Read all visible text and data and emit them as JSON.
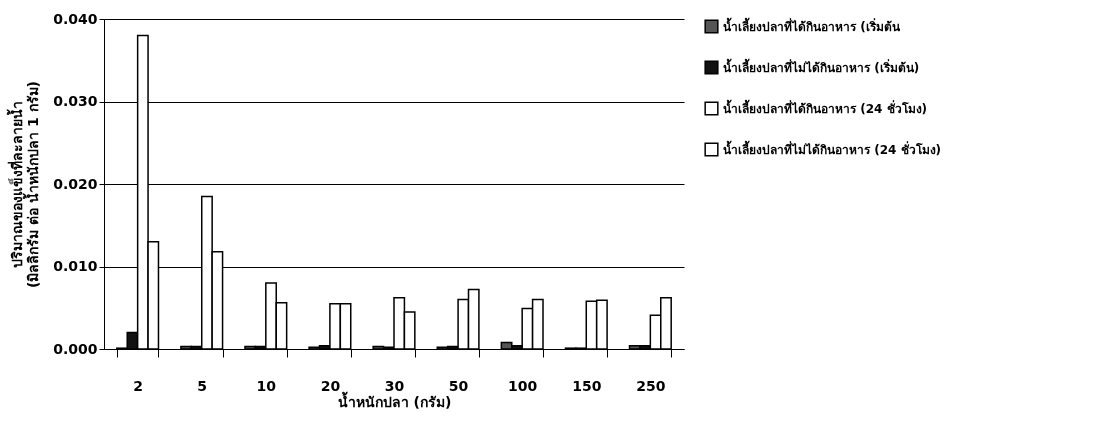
{
  "chart_data": {
    "type": "bar",
    "ylabel": "ปริมาณของแข็งที่ละลายน้ำ\n(มิลลิกรัม ต่อ น้ำหนักปลา 1 กรัม)",
    "xlabel": "น้ำหนักปลา (กรัม)",
    "categories": [
      "2",
      "5",
      "10",
      "20",
      "30",
      "50",
      "100",
      "150",
      "250"
    ],
    "series": [
      {
        "name": "น้ำเลี้ยงปลาที่ได้กินอาหาร (เริ่มต้น",
        "color": "#555555",
        "values": [
          0.0001,
          0.0003,
          0.0003,
          0.0002,
          0.0003,
          0.0002,
          0.0008,
          0.0001,
          0.0004
        ]
      },
      {
        "name": "น้ำเลี้ยงปลาที่ไม่ได้กินอาหาร (เริ่มต้น)",
        "color": "#111111",
        "values": [
          0.002,
          0.0003,
          0.0003,
          0.0004,
          0.0002,
          0.0003,
          0.0004,
          0.0001,
          0.0004
        ]
      },
      {
        "name": "น้ำเลี้ยงปลาที่ได้กินอาหาร (24 ชั่วโมง)",
        "color": "#ffffff",
        "values": [
          0.038,
          0.0185,
          0.008,
          0.0055,
          0.0062,
          0.006,
          0.0049,
          0.0058,
          0.0041
        ]
      },
      {
        "name": "น้ำเลี้ยงปลาที่ไม่ได้กินอาหาร (24 ชั่วโมง)",
        "color": "#ffffff",
        "values": [
          0.013,
          0.0118,
          0.0056,
          0.0055,
          0.0045,
          0.0072,
          0.006,
          0.0059,
          0.0062
        ]
      }
    ],
    "ylim": [
      0,
      0.04
    ],
    "yticks": [
      {
        "value": 0,
        "label": "0.000"
      },
      {
        "value": 0.01,
        "label": "0.010"
      },
      {
        "value": 0.02,
        "label": "0.020"
      },
      {
        "value": 0.03,
        "label": "0.030"
      },
      {
        "value": 0.04,
        "label": "0.040"
      }
    ],
    "grid": "y",
    "legend": "right"
  }
}
